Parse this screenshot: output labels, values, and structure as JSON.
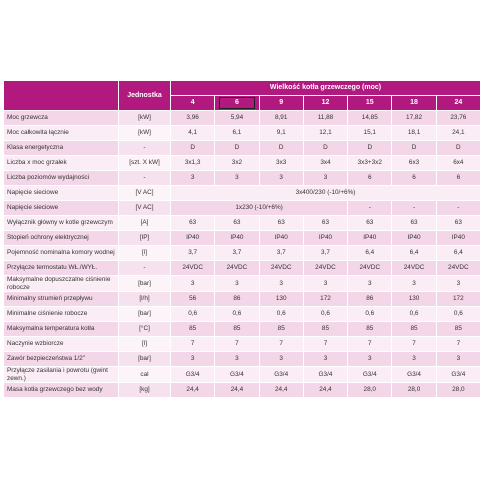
{
  "table": {
    "header": {
      "unit": "Jednostka",
      "group": "Wielkość kotła grzewczego (moc)",
      "columns": [
        "4",
        "6",
        "9",
        "12",
        "15",
        "18",
        "24"
      ]
    },
    "rows": [
      {
        "label": "Moc grzewcza",
        "unit": "[kW]",
        "cells": [
          "3,96",
          "5,94",
          "8,91",
          "11,88",
          "14,85",
          "17,82",
          "23,76"
        ]
      },
      {
        "label": "Moc całkowita łącznie",
        "unit": "[kW]",
        "cells": [
          "4,1",
          "6,1",
          "9,1",
          "12,1",
          "15,1",
          "18,1",
          "24,1"
        ]
      },
      {
        "label": "Klasa energetyczna",
        "unit": "-",
        "cells": [
          "D",
          "D",
          "D",
          "D",
          "D",
          "D",
          "D"
        ]
      },
      {
        "label": "Liczba x moc grzałek",
        "unit": "[szt. X kW]",
        "cells": [
          "3x1,3",
          "3x2",
          "3x3",
          "3x4",
          "3x3+3x2",
          "6x3",
          "6x4"
        ]
      },
      {
        "label": "Liczba poziomów wydajności",
        "unit": "-",
        "cells": [
          "3",
          "3",
          "3",
          "3",
          "6",
          "6",
          "6"
        ]
      },
      {
        "label": "Napięcie sieciowe",
        "unit": "[V AC]",
        "cells": [
          "3x400/230 (-10/+6%)"
        ]
      },
      {
        "label": "Napięcie sieciowe",
        "unit": "[V AC]",
        "cells": [
          "1x230 (-10/+6%)",
          "-",
          "-",
          "-"
        ]
      },
      {
        "label": "Wyłącznik główny w kotle grzewczym",
        "unit": "[A]",
        "cells": [
          "63",
          "63",
          "63",
          "63",
          "63",
          "63",
          "63"
        ]
      },
      {
        "label": "Stopień ochrony elektrycznej",
        "unit": "[IP]",
        "cells": [
          "IP40",
          "IP40",
          "IP40",
          "IP40",
          "IP40",
          "IP40",
          "IP40"
        ]
      },
      {
        "label": "Pojemność nominalna komory wodnej",
        "unit": "[l]",
        "cells": [
          "3,7",
          "3,7",
          "3,7",
          "3,7",
          "6,4",
          "6,4",
          "6,4"
        ]
      },
      {
        "label": "Przyłącze termostatu WŁ./WYŁ.",
        "unit": "-",
        "cells": [
          "24VDC",
          "24VDC",
          "24VDC",
          "24VDC",
          "24VDC",
          "24VDC",
          "24VDC"
        ]
      },
      {
        "label": "Maksymalne dopuszczalne ciśnienie robocze",
        "unit": "[bar]",
        "cells": [
          "3",
          "3",
          "3",
          "3",
          "3",
          "3",
          "3"
        ]
      },
      {
        "label": "Minimalny strumień przepływu",
        "unit": "[l/h]",
        "cells": [
          "56",
          "86",
          "130",
          "172",
          "86",
          "130",
          "172"
        ]
      },
      {
        "label": "Minimalne ciśnienie robocze",
        "unit": "[bar]",
        "cells": [
          "0,6",
          "0,6",
          "0,6",
          "0,6",
          "0,6",
          "0,6",
          "0,6"
        ]
      },
      {
        "label": "Maksymalna temperatura kotła",
        "unit": "[°C]",
        "cells": [
          "85",
          "85",
          "85",
          "85",
          "85",
          "85",
          "85"
        ]
      },
      {
        "label": "Naczynie wzbiorcze",
        "unit": "[l]",
        "cells": [
          "7",
          "7",
          "7",
          "7",
          "7",
          "7",
          "7"
        ]
      },
      {
        "label": "Zawór bezpieczeństwa 1/2\"",
        "unit": "[bar]",
        "cells": [
          "3",
          "3",
          "3",
          "3",
          "3",
          "3",
          "3"
        ]
      },
      {
        "label": "Przyłącze zasilania i powrotu (gwint zewn.)",
        "unit": "cal",
        "cells": [
          "G3/4",
          "G3/4",
          "G3/4",
          "G3/4",
          "G3/4",
          "G3/4",
          "G3/4"
        ]
      },
      {
        "label": "Masa kotła grzewczego bez wody",
        "unit": "[kg]",
        "cells": [
          "24,4",
          "24,4",
          "24,4",
          "24,4",
          "28,0",
          "28,0",
          "28,0"
        ]
      }
    ]
  }
}
